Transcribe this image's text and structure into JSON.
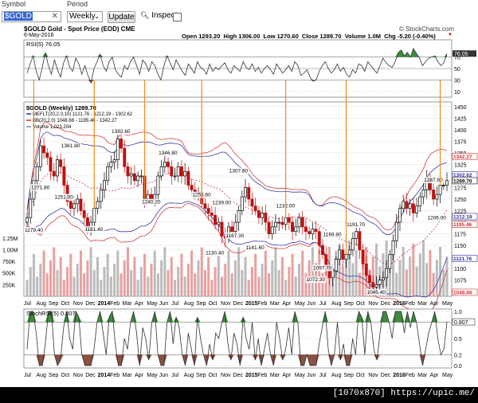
{
  "toolbar": {
    "symbol_label": "Symbol",
    "symbol_value": "$GOLD",
    "period_label": "Period",
    "period_value": "Weekly",
    "update_label": "Update",
    "inspect_label": "Inspect"
  },
  "header": {
    "title": "$GOLD Gold - Spot Price (EOD) CME",
    "credit": "© StockCharts.com",
    "date": "6-May-2016",
    "ohlc": "Open 1293.20  High 1306.00  Low 1270.60  Close 1289.70  Volume 1.0M  Chg -5.20 (-0.40%)",
    "chg_arrow": "▼"
  },
  "watermark": "[1070x870] https://upic.me/",
  "chart_data": [
    {
      "type": "line",
      "title": "RSI(5) 76.05",
      "ylim": [
        0,
        100
      ],
      "y_ticks": [
        76.05,
        70,
        50,
        30,
        10
      ],
      "y_tick_labels": [
        "76.05",
        "70",
        "50",
        "30",
        "10"
      ],
      "x_ticks": [
        "Jul",
        "Aug",
        "Sep",
        "Oct",
        "Nov",
        "Dec",
        "2014",
        "Feb",
        "Mar",
        "Apr",
        "May",
        "Jun",
        "Jul",
        "Aug",
        "Sep",
        "Oct",
        "Nov",
        "Dec",
        "2015",
        "Feb",
        "Mar",
        "Apr",
        "May",
        "Jun",
        "Jul",
        "Aug",
        "Sep",
        "Oct",
        "Nov",
        "Dec",
        "2016",
        "Feb",
        "Mar",
        "Apr",
        "May"
      ],
      "values": [
        42,
        58,
        72,
        45,
        30,
        52,
        78,
        55,
        40,
        65,
        48,
        35,
        60,
        72,
        52,
        45,
        68,
        58,
        40,
        55,
        38,
        25,
        50,
        62,
        75,
        55,
        45,
        62,
        70,
        48,
        40,
        35,
        55,
        48,
        62,
        70,
        55,
        40,
        65,
        58,
        45,
        62,
        55,
        40,
        30,
        55,
        72,
        60,
        48,
        65,
        55,
        45,
        38,
        58,
        50,
        42,
        62,
        52,
        48,
        40,
        58,
        45,
        52,
        48,
        55,
        60,
        48,
        42,
        55,
        50,
        45,
        62,
        52,
        48,
        58,
        45,
        52,
        42,
        50,
        55,
        48,
        40,
        58,
        50,
        42,
        48,
        55,
        45,
        62,
        55,
        38,
        42,
        48,
        35,
        28,
        30,
        45,
        55,
        62,
        50,
        42,
        48,
        58,
        45,
        52,
        40,
        35,
        48,
        42,
        58,
        55,
        45,
        62,
        55,
        48,
        42,
        55,
        68,
        60,
        55,
        52,
        62,
        78,
        82,
        72,
        78,
        70,
        85,
        76,
        68,
        55,
        62,
        68,
        70,
        72,
        62,
        55,
        60,
        76
      ]
    },
    {
      "type": "candlestick",
      "title": "$GOLD (Weekly) 1289.70",
      "legend": [
        {
          "name": "MEFLT(20,2.0,10) 1121.76 - 1212.19 - 1302.62",
          "color": "#2b2b9e"
        },
        {
          "name": "BB(20,2.0) 1048.66 - 1195.46 - 1342.27",
          "color": "#d02b2b"
        },
        {
          "name": "Volume 1,023,204",
          "color": "#888888"
        }
      ],
      "ylim": [
        1040,
        1460
      ],
      "y_ticks": [
        1450,
        1425,
        1400,
        1375,
        1350,
        1325,
        1300,
        1275,
        1250,
        1225,
        1200,
        1175,
        1150,
        1125,
        1100,
        1075,
        1050
      ],
      "right_value_labels": [
        {
          "value": 1342.27,
          "color": "#d02b2b"
        },
        {
          "value": 1302.62,
          "color": "#2b2b9e"
        },
        {
          "value": 1289.7,
          "color": "#000000"
        },
        {
          "value": 1212.19,
          "color": "#2b2b9e"
        },
        {
          "value": 1195.46,
          "color": "#d02b2b"
        },
        {
          "value": 1121.76,
          "color": "#2b2b9e"
        },
        {
          "value": 1048.66,
          "color": "#d02b2b"
        }
      ],
      "annotations": [
        {
          "label": "1179.40",
          "x": 1,
          "y": 1179.4
        },
        {
          "label": "1271.80",
          "x": 4,
          "y": 1271.8
        },
        {
          "label": "1251.00",
          "x": 11,
          "y": 1251.0
        },
        {
          "label": "1361.80",
          "x": 13,
          "y": 1361.8
        },
        {
          "label": "1181.40",
          "x": 20,
          "y": 1181.4
        },
        {
          "label": "1392.60",
          "x": 28,
          "y": 1392.6
        },
        {
          "label": "1240.20",
          "x": 37,
          "y": 1240.2
        },
        {
          "label": "1346.80",
          "x": 42,
          "y": 1346.8
        },
        {
          "label": "1255.60",
          "x": 52,
          "y": 1255.6
        },
        {
          "label": "1130.40",
          "x": 56,
          "y": 1130.4
        },
        {
          "label": "1239.00",
          "x": 58,
          "y": 1239.0
        },
        {
          "label": "1307.80",
          "x": 63,
          "y": 1307.8
        },
        {
          "label": "1167.30",
          "x": 62,
          "y": 1167.3
        },
        {
          "label": "1141.60",
          "x": 68,
          "y": 1141.6
        },
        {
          "label": "1232.00",
          "x": 77,
          "y": 1232.0
        },
        {
          "label": "1097.70",
          "x": 88,
          "y": 1097.7
        },
        {
          "label": "1072.30",
          "x": 86,
          "y": 1072.3
        },
        {
          "label": "1169.80",
          "x": 91,
          "y": 1169.8
        },
        {
          "label": "1191.70",
          "x": 98,
          "y": 1191.7
        },
        {
          "label": "1045.40",
          "x": 104,
          "y": 1045.4
        },
        {
          "label": "1287.80",
          "x": 121,
          "y": 1287.8
        },
        {
          "label": "1206.00",
          "x": 122,
          "y": 1206.0
        }
      ],
      "volume_ticks": [
        "1.25M",
        "1.00M",
        "750K",
        "500K",
        "250K"
      ],
      "volume_tick_values": [
        1250000,
        1000000,
        750000,
        500000,
        250000
      ],
      "close": [
        1210,
        1250,
        1290,
        1320,
        1365,
        1350,
        1340,
        1310,
        1300,
        1335,
        1320,
        1280,
        1245,
        1230,
        1240,
        1250,
        1225,
        1210,
        1190,
        1200,
        1230,
        1245,
        1270,
        1290,
        1320,
        1330,
        1335,
        1380,
        1360,
        1320,
        1300,
        1305,
        1290,
        1300,
        1300,
        1250,
        1260,
        1250,
        1260,
        1300,
        1320,
        1330,
        1320,
        1300,
        1300,
        1320,
        1300,
        1310,
        1280,
        1270,
        1265,
        1265,
        1240,
        1230,
        1220,
        1215,
        1195,
        1200,
        1170,
        1165,
        1190,
        1180,
        1200,
        1225,
        1255,
        1275,
        1250,
        1235,
        1225,
        1210,
        1220,
        1200,
        1175,
        1190,
        1200,
        1200,
        1195,
        1210,
        1200,
        1180,
        1190,
        1210,
        1190,
        1180,
        1175,
        1185,
        1180,
        1150,
        1130,
        1100,
        1080,
        1095,
        1120,
        1140,
        1120,
        1130,
        1140,
        1165,
        1180,
        1140,
        1110,
        1085,
        1070,
        1060,
        1065,
        1075,
        1080,
        1100,
        1130,
        1160,
        1200,
        1230,
        1245,
        1230,
        1240,
        1220,
        1235,
        1255,
        1270,
        1295,
        1270,
        1250,
        1260,
        1280,
        1280,
        1290
      ]
    },
    {
      "type": "line",
      "title": "StochRSI(5) 0.807",
      "ylim": [
        0,
        1
      ],
      "y_ticks": [
        1.0,
        0.8,
        0.5,
        0.2,
        0.0
      ],
      "y_tick_labels": [
        "1.0",
        "0.807",
        "0.5",
        "0.2",
        "0.0"
      ],
      "x_ticks": [
        "Jul",
        "Aug",
        "Sep",
        "Oct",
        "Nov",
        "Dec",
        "2014",
        "Feb",
        "Mar",
        "Apr",
        "May",
        "Jun",
        "Jul",
        "Aug",
        "Sep",
        "Oct",
        "Nov",
        "Dec",
        "2015",
        "Feb",
        "Mar",
        "Apr",
        "May",
        "Jun",
        "Jul",
        "Aug",
        "Sep",
        "Oct",
        "Nov",
        "Dec",
        "2016",
        "Feb",
        "Mar",
        "Apr",
        "May"
      ],
      "values": [
        0.3,
        1,
        1,
        0.6,
        0,
        0,
        0.4,
        1,
        1,
        0.2,
        0,
        0.1,
        0.7,
        1,
        0.5,
        0.3,
        1,
        0.9,
        0.2,
        0,
        0,
        0,
        0.3,
        0.8,
        1,
        0.6,
        0.2,
        0.9,
        1,
        0.4,
        0,
        0,
        0.5,
        0.3,
        0.8,
        1,
        0.6,
        0,
        0.7,
        0.5,
        0.1,
        0.8,
        1,
        0.2,
        0,
        0,
        0.8,
        1,
        0.4,
        0.9,
        0.7,
        0.2,
        0,
        0.6,
        0.3,
        0,
        0.9,
        0.5,
        0.2,
        0,
        0.4,
        0.1,
        0.6,
        0.5,
        0.8,
        1,
        0.4,
        0.1,
        0.6,
        0.4,
        0,
        0.9,
        0.5,
        0.3,
        0.8,
        0.1,
        0.5,
        0,
        0.3,
        0.6,
        0.2,
        0,
        0.8,
        0.5,
        0.1,
        0.3,
        0.7,
        0.2,
        1,
        0.8,
        0,
        0,
        0.2,
        0,
        0,
        0,
        0.4,
        0.7,
        1,
        0.3,
        0,
        0.2,
        0.8,
        0.1,
        0.4,
        0,
        0,
        0.5,
        0.2,
        1,
        0.9,
        0.2,
        1,
        0.8,
        0.3,
        0.1,
        0.6,
        1,
        1,
        0.8,
        0.5,
        1,
        1,
        1,
        0.6,
        1,
        0.7,
        1,
        0.8,
        0.4,
        0,
        0.3,
        0.6,
        0.8,
        1,
        0.5,
        0.2,
        0.3,
        0.807
      ]
    }
  ]
}
